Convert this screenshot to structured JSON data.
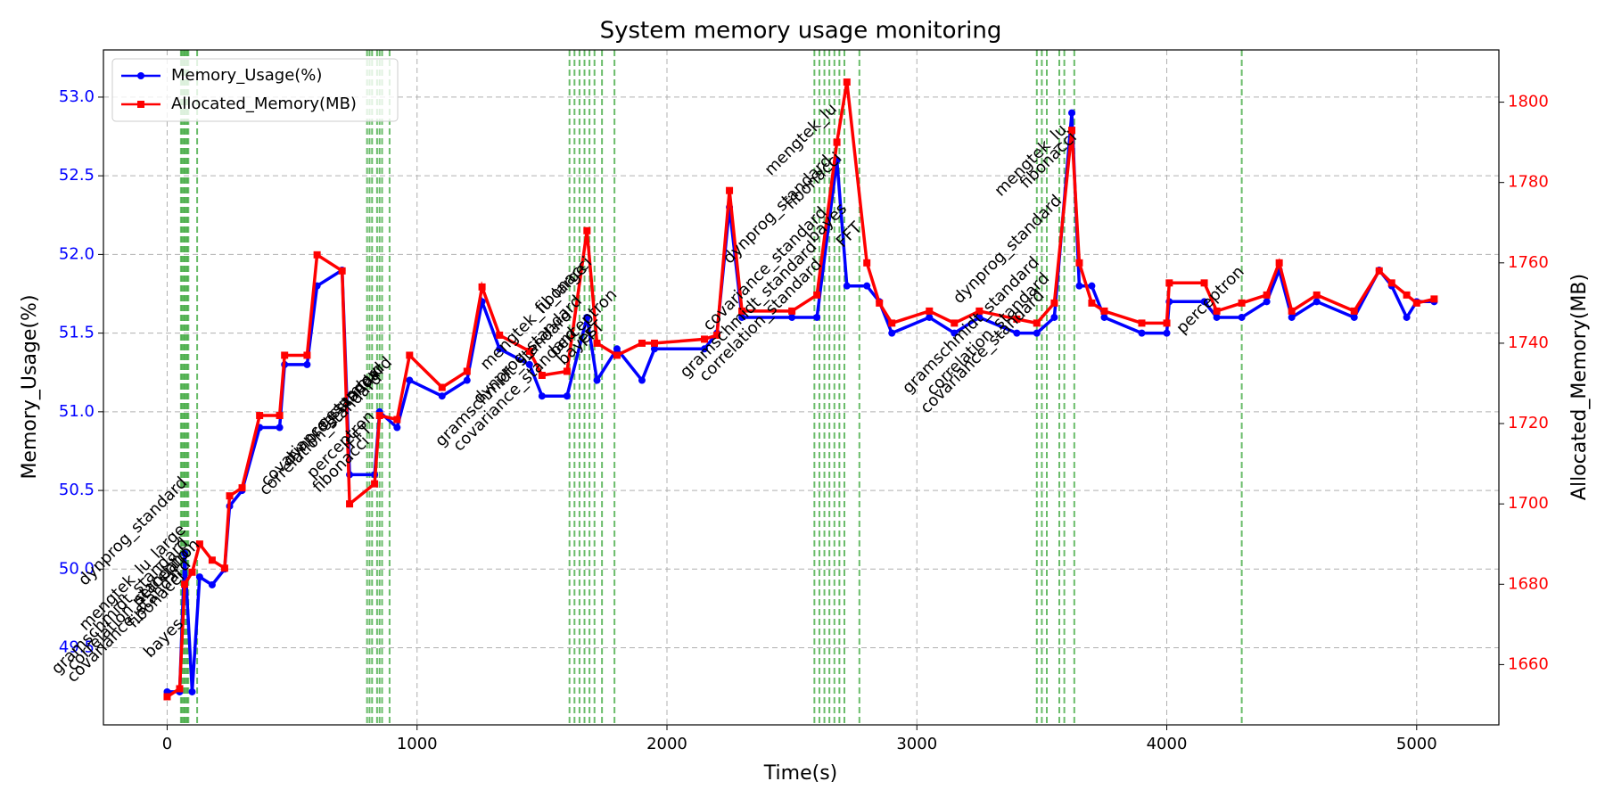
{
  "chart_data": {
    "type": "line",
    "title": "System memory usage monitoring",
    "x_label": "Time(s)",
    "y_label": "Memory_Usage(%)",
    "y2_label": "Allocated_Memory(MB)",
    "x": [
      0,
      50,
      70,
      100,
      130,
      180,
      230,
      250,
      300,
      370,
      450,
      470,
      560,
      600,
      700,
      730,
      830,
      850,
      920,
      970,
      1100,
      1200,
      1260,
      1330,
      1450,
      1500,
      1600,
      1680,
      1720,
      1800,
      1900,
      1950,
      2150,
      2200,
      2250,
      2300,
      2500,
      2600,
      2680,
      2720,
      2800,
      2850,
      2900,
      3050,
      3150,
      3250,
      3400,
      3480,
      3550,
      3620,
      3650,
      3700,
      3750,
      3900,
      4000,
      4010,
      4150,
      4200,
      4300,
      4400,
      4450,
      4500,
      4600,
      4750,
      4850,
      4900,
      4960,
      5000,
      5070
    ],
    "series": [
      {
        "name": "Memory_Usage(%)",
        "color": "#0000ff",
        "marker": "circle",
        "values": [
          49.22,
          49.22,
          50.1,
          49.22,
          49.95,
          49.9,
          50.0,
          50.4,
          50.5,
          50.9,
          50.9,
          51.3,
          51.3,
          51.8,
          51.9,
          50.6,
          50.6,
          51.0,
          50.9,
          51.2,
          51.1,
          51.2,
          51.7,
          51.4,
          51.3,
          51.1,
          51.1,
          51.6,
          51.2,
          51.4,
          51.2,
          51.4,
          51.4,
          51.5,
          52.3,
          51.6,
          51.6,
          51.6,
          52.6,
          51.8,
          51.8,
          51.7,
          51.5,
          51.6,
          51.5,
          51.6,
          51.5,
          51.5,
          51.6,
          52.9,
          51.8,
          51.8,
          51.6,
          51.5,
          51.5,
          51.7,
          51.7,
          51.6,
          51.6,
          51.7,
          51.9,
          51.6,
          51.7,
          51.6,
          51.9,
          51.8,
          51.6,
          51.7,
          51.7
        ]
      },
      {
        "name": "Allocated_Memory(MB)",
        "color": "#ff0000",
        "marker": "square",
        "axis": "y2",
        "values": [
          1652,
          1654,
          1680,
          1683,
          1690,
          1686,
          1684,
          1702,
          1704,
          1722,
          1722,
          1737,
          1737,
          1762,
          1758,
          1700,
          1705,
          1722,
          1721,
          1737,
          1729,
          1733,
          1754,
          1742,
          1738,
          1732,
          1733,
          1768,
          1740,
          1737,
          1740,
          1740,
          1741,
          1742,
          1778,
          1748,
          1748,
          1752,
          1790,
          1805,
          1760,
          1750,
          1745,
          1748,
          1745,
          1748,
          1746,
          1745,
          1750,
          1793,
          1760,
          1750,
          1748,
          1745,
          1745,
          1755,
          1755,
          1748,
          1750,
          1752,
          1760,
          1748,
          1752,
          1748,
          1758,
          1755,
          1752,
          1750,
          1751
        ]
      }
    ],
    "xlim": [
      -255,
      5329
    ],
    "ylim": [
      49.01,
      53.3
    ],
    "y2lim": [
      1645,
      1813
    ],
    "xticks": [
      0,
      1000,
      2000,
      3000,
      4000,
      5000
    ],
    "yticks": [
      49.5,
      {
        "value": 50,
        "label": "50.0"
      },
      50.5,
      {
        "value": 51,
        "label": "51.0"
      },
      51.5,
      {
        "value": 52,
        "label": "52.0"
      },
      52.5,
      {
        "value": 53,
        "label": "53.0"
      }
    ],
    "y2ticks": [
      1660,
      1680,
      1700,
      1720,
      1740,
      1760,
      1780,
      1800
    ],
    "grid": true,
    "legend": "upper left",
    "event_color": "#2ca02c",
    "events": [
      {
        "x": 55,
        "label": "bayes"
      },
      {
        "x": 60,
        "label": "fibonacci"
      },
      {
        "x": 65,
        "label": "mengtek_lu_large"
      },
      {
        "x": 70,
        "label": "dynprog_standard"
      },
      {
        "x": 75,
        "label": "gramschmidt_standard"
      },
      {
        "x": 80,
        "label": "correlation_standard"
      },
      {
        "x": 85,
        "label": "covariance_standard"
      },
      {
        "x": 120,
        "label": "perceptron"
      },
      {
        "x": 800,
        "label": "fibonacci"
      },
      {
        "x": 810,
        "label": "FFT"
      },
      {
        "x": 820,
        "label": "perceptron"
      },
      {
        "x": 840,
        "label": "gesummv"
      },
      {
        "x": 850,
        "label": "correlation_standard"
      },
      {
        "x": 860,
        "label": "covariance_standard"
      },
      {
        "x": 890,
        "label": "dynprog_standard"
      },
      {
        "x": 1610,
        "label": "gramschmidt_standard"
      },
      {
        "x": 1630,
        "label": "covariance_standard"
      },
      {
        "x": 1650,
        "label": "dynprog_standard"
      },
      {
        "x": 1670,
        "label": "mengtek_lu_large"
      },
      {
        "x": 1690,
        "label": "fibonacci"
      },
      {
        "x": 1710,
        "label": "bayes"
      },
      {
        "x": 1740,
        "label": "FFT"
      },
      {
        "x": 1790,
        "label": "perceptron"
      },
      {
        "x": 2590,
        "label": "gramschmidt_standard"
      },
      {
        "x": 2610,
        "label": "correlation_standard"
      },
      {
        "x": 2630,
        "label": "covariance_standard"
      },
      {
        "x": 2650,
        "label": "dynprog_standard"
      },
      {
        "x": 2670,
        "label": "mengtek_lu"
      },
      {
        "x": 2690,
        "label": "fibonacci"
      },
      {
        "x": 2710,
        "label": "bayes"
      },
      {
        "x": 2770,
        "label": "FFT"
      },
      {
        "x": 3480,
        "label": "gramschmidt_standard"
      },
      {
        "x": 3500,
        "label": "covariance_standard"
      },
      {
        "x": 3520,
        "label": "correlation_standard"
      },
      {
        "x": 3570,
        "label": "dynprog_standard"
      },
      {
        "x": 3590,
        "label": "mengtek_lu"
      },
      {
        "x": 3630,
        "label": "fibonacci"
      },
      {
        "x": 4300,
        "label": "perceptron"
      }
    ]
  }
}
